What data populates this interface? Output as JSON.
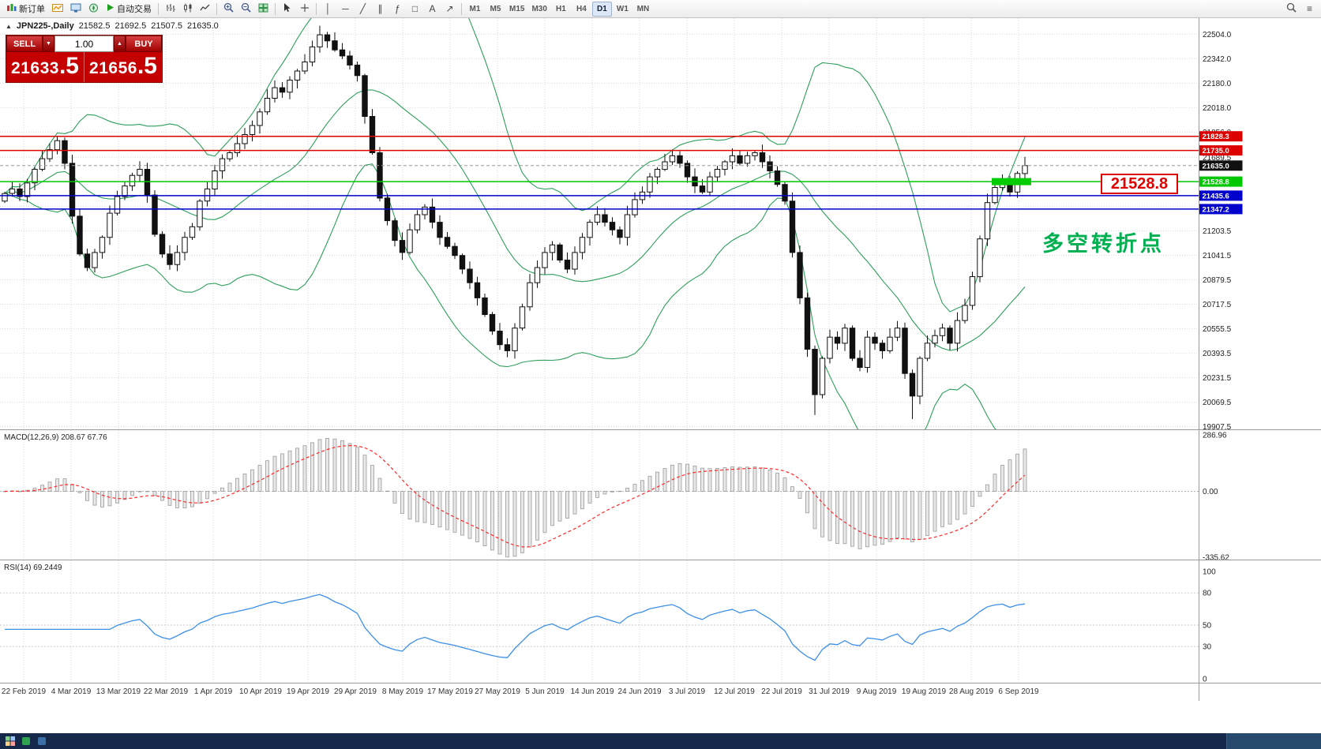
{
  "toolbar": {
    "new_order_label": "新订单",
    "autotrading_label": "自动交易",
    "timeframes": [
      "M1",
      "M5",
      "M15",
      "M30",
      "H1",
      "H4",
      "D1",
      "W1",
      "MN"
    ],
    "active_timeframe": "D1"
  },
  "icons": {
    "chevron_down": "▾",
    "vertical_line": "│",
    "horizontal_line": "─",
    "trendline": "╱",
    "channel": "∥",
    "fibonacci": "ƒ",
    "shapes": "□",
    "text_tool": "A",
    "arrows_tool": "↗",
    "crosshair": "+",
    "menu": "≡",
    "volume_up": "▲",
    "volume_down": "▼",
    "collapse_arrow": "▲"
  },
  "header": {
    "symbol": "JPN225-,Daily",
    "open": "21582.5",
    "high": "21692.5",
    "low": "21507.5",
    "close": "21635.0"
  },
  "trade_panel": {
    "sell_label": "SELL",
    "buy_label": "BUY",
    "volume": "1.00",
    "sell_price": "21633",
    "sell_pips": ".5",
    "buy_price": "21656",
    "buy_pips": ".5"
  },
  "annotations": {
    "price_box": "21528.8",
    "turning_point": "多空转折点"
  },
  "indicators": {
    "macd_title": "MACD(12,26,9)",
    "macd_values": "208.67 67.76",
    "rsi_title": "RSI(14)",
    "rsi_value": "69.2449"
  },
  "colors": {
    "resistance": "#dd0000",
    "support": "#0000cc",
    "pivot": "#00c800",
    "pivot_fill": "#00cc00",
    "current_tag": "#111111",
    "bands": "#2e9e5b",
    "rsi_line": "#3b8fe6",
    "macd_signal": "#ff2a2a",
    "macd_hist_fill": "#e8e8e8",
    "macd_hist_stroke": "#9a9a9a",
    "annotation_green": "#00b050",
    "annotation_red": "#e00000",
    "trade_panel_red": "#c40000",
    "taskbar": "#16294a"
  },
  "chart_data": {
    "type": "candlestick",
    "symbol": "JPN225-",
    "timeframe": "Daily",
    "first_open": 21400,
    "closes": [
      21450,
      21480,
      21430,
      21520,
      21610,
      21680,
      21740,
      21800,
      21650,
      21300,
      21050,
      20960,
      21060,
      21160,
      21320,
      21430,
      21500,
      21570,
      21610,
      21440,
      21180,
      21050,
      20980,
      21060,
      21160,
      21230,
      21400,
      21480,
      21600,
      21680,
      21720,
      21780,
      21840,
      21900,
      21990,
      22080,
      22150,
      22120,
      22200,
      22260,
      22320,
      22420,
      22500,
      22460,
      22400,
      22360,
      22300,
      22230,
      21960,
      21720,
      21420,
      21270,
      21140,
      21060,
      21210,
      21310,
      21360,
      21260,
      21160,
      21100,
      21040,
      20950,
      20860,
      20760,
      20650,
      20540,
      20450,
      20410,
      20560,
      20700,
      20860,
      20960,
      21060,
      21110,
      21010,
      20950,
      21060,
      21160,
      21260,
      21310,
      21260,
      21210,
      21160,
      21310,
      21410,
      21460,
      21560,
      21610,
      21660,
      21700,
      21650,
      21560,
      21500,
      21460,
      21560,
      21610,
      21660,
      21700,
      21650,
      21700,
      21720,
      21660,
      21600,
      21510,
      21400,
      21060,
      20760,
      20420,
      20120,
      20360,
      20500,
      20460,
      20560,
      20360,
      20300,
      20500,
      20460,
      20410,
      20500,
      20560,
      20260,
      20110,
      20360,
      20460,
      20510,
      20560,
      20460,
      20610,
      20710,
      20900,
      21150,
      21390,
      21490,
      21540,
      21460,
      21582.5,
      21635
    ],
    "last_ohlc": [
      21582.5,
      21692.5,
      21507.5,
      21635.0
    ],
    "low_overrides": {
      "108": 19985,
      "121": 19958
    },
    "high_overrides": {
      "7": 21830,
      "42": 22560
    },
    "x_dates": [
      "22 Feb 2019",
      "4 Mar 2019",
      "13 Mar 2019",
      "22 Mar 2019",
      "1 Apr 2019",
      "10 Apr 2019",
      "19 Apr 2019",
      "29 Apr 2019",
      "8 May 2019",
      "17 May 2019",
      "27 May 2019",
      "5 Jun 2019",
      "14 Jun 2019",
      "24 Jun 2019",
      "3 Jul 2019",
      "12 Jul 2019",
      "22 Jul 2019",
      "31 Jul 2019",
      "9 Aug 2019",
      "19 Aug 2019",
      "28 Aug 2019",
      "6 Sep 2019"
    ],
    "y_axis_ticks": [
      {
        "text": "22504.0",
        "value": 22504.0
      },
      {
        "text": "22342.0",
        "value": 22342.0
      },
      {
        "text": "22180.0",
        "value": 22180.0
      },
      {
        "text": "22018.0",
        "value": 22018.0
      },
      {
        "text": "21856.0",
        "value": 21856.0
      },
      {
        "text": "21689.5",
        "value": 21689.5
      },
      {
        "text": "21203.5",
        "value": 21203.5
      },
      {
        "text": "21041.5",
        "value": 21041.5
      },
      {
        "text": "20879.5",
        "value": 20879.5
      },
      {
        "text": "20717.5",
        "value": 20717.5
      },
      {
        "text": "20555.5",
        "value": 20555.5
      },
      {
        "text": "20393.5",
        "value": 20393.5
      },
      {
        "text": "20231.5",
        "value": 20231.5
      },
      {
        "text": "20069.5",
        "value": 20069.5
      },
      {
        "text": "19907.5",
        "value": 19907.5
      }
    ],
    "grid_only_values": [
      21527.5,
      21365.5
    ],
    "levels": [
      {
        "text": "21828.3",
        "value": 21828.3,
        "color": "#dd0000",
        "style": "solid"
      },
      {
        "text": "21735.0",
        "value": 21735.0,
        "color": "#dd0000",
        "style": "solid"
      },
      {
        "text": "21635.0",
        "value": 21635.0,
        "color": "#111111",
        "style": "current"
      },
      {
        "text": "21528.8",
        "value": 21528.8,
        "color": "#00c800",
        "style": "solid"
      },
      {
        "text": "21435.6",
        "value": 21435.6,
        "color": "#0000cc",
        "style": "solid"
      },
      {
        "text": "21347.2",
        "value": 21347.2,
        "color": "#0000cc",
        "style": "solid"
      }
    ],
    "highlight_segment": {
      "start_index": 132,
      "end_index": 136,
      "value": 21528.8
    },
    "current_price": 21635.0,
    "macd_axis": [
      {
        "text": "286.96",
        "value": 286.96
      },
      {
        "text": "0.00",
        "value": 0
      },
      {
        "text": "-335.62",
        "value": -335.62
      }
    ],
    "rsi_axis": [
      {
        "text": "100",
        "value": 100
      },
      {
        "text": "80",
        "value": 80
      },
      {
        "text": "50",
        "value": 50
      },
      {
        "text": "30",
        "value": 30
      },
      {
        "text": "0",
        "value": 0
      }
    ],
    "rsi_levels": [
      80,
      50,
      30
    ]
  }
}
